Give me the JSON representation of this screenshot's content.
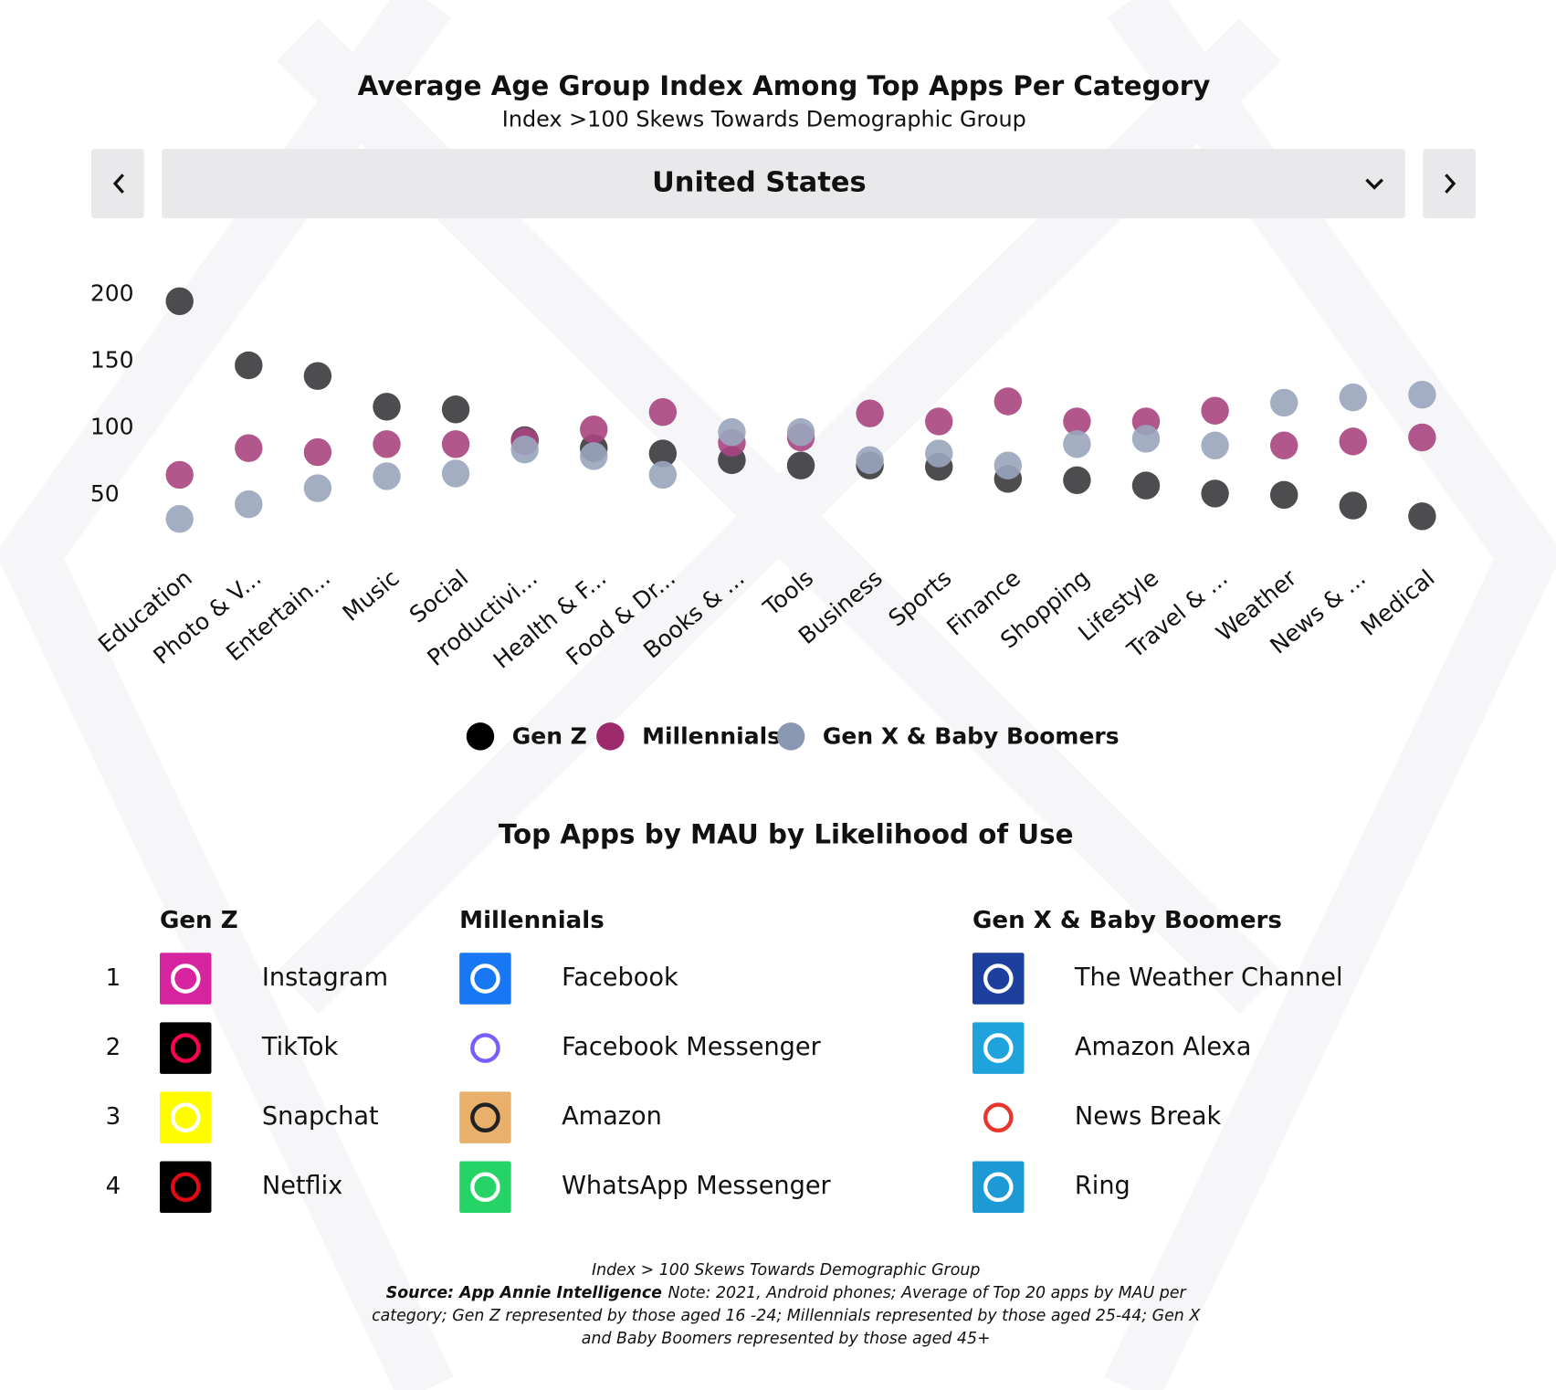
{
  "chart_data": {
    "type": "dot",
    "title": "Average Age Group Index Among Top Apps Per Category",
    "subtitle": "Index  >100 Skews Towards Demographic Group",
    "categories": [
      "Education",
      "Photo & V...",
      "Entertain...",
      "Music",
      "Social",
      "Productivi...",
      "Health & F...",
      "Food & Dr...",
      "Books & ...",
      "Tools",
      "Business",
      "Sports",
      "Finance",
      "Shopping",
      "Lifestyle",
      "Travel & ...",
      "Weather",
      "News & ...",
      "Medical"
    ],
    "series": [
      {
        "name": "Gen Z",
        "color": "#3a3a3d",
        "legend_color": "#000000",
        "values": [
          195,
          147,
          139,
          116,
          114,
          91,
          85,
          81,
          76,
          72,
          72,
          71,
          62,
          61,
          57,
          51,
          50,
          42,
          34
        ]
      },
      {
        "name": "Millennials",
        "color": "#a8457f",
        "legend_color": "#9c2a6c",
        "values": [
          65,
          85,
          82,
          88,
          88,
          90,
          99,
          112,
          89,
          93,
          111,
          105,
          120,
          105,
          105,
          113,
          87,
          90,
          93
        ]
      },
      {
        "name": "Gen X & Baby Boomers",
        "color": "#9aa5bc",
        "legend_color": "#8a97b0",
        "values": [
          32,
          43,
          55,
          64,
          66,
          84,
          79,
          65,
          97,
          97,
          76,
          81,
          72,
          88,
          92,
          87,
          119,
          123,
          125
        ]
      }
    ],
    "ylim": [
      20,
      205
    ],
    "yticks": [
      50,
      100,
      150,
      200
    ],
    "grid": false,
    "legend": "bottom"
  },
  "selector": {
    "region": "United States"
  },
  "apps_table": {
    "title": "Top Apps by MAU by Likelihood of Use",
    "columns": [
      "Gen Z",
      "Millennials",
      "Gen X & Baby Boomers"
    ],
    "ranks": [
      "1",
      "2",
      "3",
      "4"
    ],
    "apps": [
      [
        "Instagram",
        "TikTok",
        "Snapchat",
        "Netflix"
      ],
      [
        "Facebook",
        "Facebook Messenger",
        "Amazon",
        "WhatsApp Messenger"
      ],
      [
        "The Weather Channel",
        "Amazon Alexa",
        "News Break",
        "Ring"
      ]
    ]
  },
  "footnote": {
    "line1": "Index > 100 Skews Towards Demographic Group",
    "source": "Source: App Annie Intelligence",
    "note_lines": [
      "Note: 2021, Android phones; Average of Top 20 apps by MAU per",
      "category; Gen Z represented by those aged 16 -24; Millennials represented by those aged 25-44; Gen X",
      "and Baby Boomers represented by those aged 45+"
    ]
  }
}
